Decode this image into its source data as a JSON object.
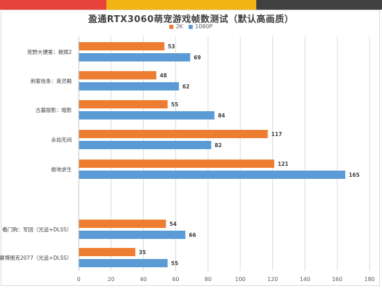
{
  "header_stripe_colors": [
    "#e8433a",
    "#f2b415",
    "#404040"
  ],
  "chart_data": {
    "type": "bar",
    "orientation": "horizontal",
    "title": "盈通RTX3060萌宠游戏帧数测试（默认高画质）",
    "categories": [
      "荒野大镖客：救赎2",
      "刺客信条：英灵殿",
      "古墓丽影：暗影",
      "永劫无间",
      "绝地求生",
      "",
      "看门狗：军团（光追+DLSS）",
      "赛博朋克2077（光追+DLSS）"
    ],
    "series": [
      {
        "name": "2K",
        "color": "#ed7d31",
        "values": [
          53,
          48,
          55,
          117,
          121,
          null,
          54,
          35
        ]
      },
      {
        "name": "1080P",
        "color": "#5b9bd5",
        "values": [
          69,
          62,
          84,
          82,
          165,
          null,
          66,
          55
        ]
      }
    ],
    "xlim": [
      0,
      180
    ],
    "xticks": [
      "0",
      "20",
      "40",
      "60",
      "80",
      "100",
      "120",
      "140",
      "160",
      "180"
    ],
    "grid": true,
    "legend_position": "top"
  }
}
